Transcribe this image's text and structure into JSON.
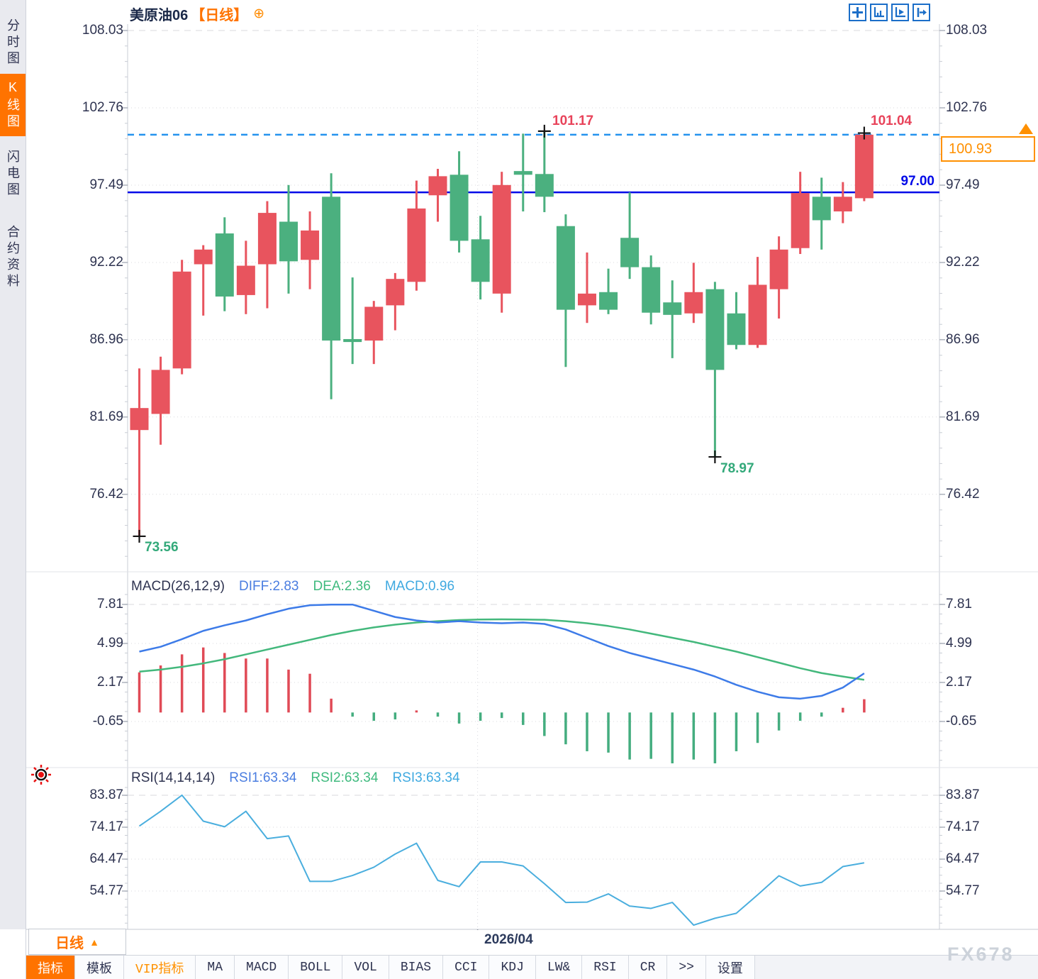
{
  "window": {
    "watermark": "FX678"
  },
  "sidebar": {
    "items": [
      {
        "label": "分时图",
        "active": false
      },
      {
        "label": "K线图",
        "active": true
      },
      {
        "label": "闪电图",
        "active": false
      },
      {
        "label": "合约资料",
        "active": false
      }
    ]
  },
  "header": {
    "title": "美原油06",
    "period_tag": "【日线】",
    "crosshair_icon": "⊕",
    "toolbar_icons": [
      "move-icon",
      "axis-zoom-icon",
      "axis-play-icon",
      "axis-shift-icon"
    ]
  },
  "price_panel": {
    "y_ticks": [
      "108.03",
      "102.76",
      "97.49",
      "92.22",
      "86.96",
      "81.69",
      "76.42"
    ],
    "annotations": {
      "high_mid": "101.17",
      "high_last": "101.04",
      "last_price": "100.93",
      "support": "97.00",
      "low_mid": "78.97",
      "low_first": "73.56"
    }
  },
  "macd_panel": {
    "label": "MACD(26,12,9)",
    "diff_label": "DIFF:2.83",
    "dea_label": "DEA:2.36",
    "macd_label": "MACD:0.96",
    "y_ticks": [
      "7.81",
      "4.99",
      "2.17",
      "-0.65"
    ]
  },
  "rsi_panel": {
    "label": "RSI(14,14,14)",
    "rsi1_label": "RSI1:63.34",
    "rsi2_label": "RSI2:63.34",
    "rsi3_label": "RSI3:63.34",
    "y_ticks": [
      "83.87",
      "74.17",
      "64.47",
      "54.77"
    ]
  },
  "xaxis": {
    "date_label": "2026/04",
    "period_button": "日线",
    "period_arrow": "▲"
  },
  "tabbar": {
    "tabs": [
      {
        "label": "指标",
        "variant": "active"
      },
      {
        "label": "模板",
        "variant": "normal"
      },
      {
        "label": "VIP指标",
        "variant": "vip"
      },
      {
        "label": "MA",
        "variant": "normal"
      },
      {
        "label": "MACD",
        "variant": "normal"
      },
      {
        "label": "BOLL",
        "variant": "normal"
      },
      {
        "label": "VOL",
        "variant": "normal"
      },
      {
        "label": "BIAS",
        "variant": "normal"
      },
      {
        "label": "CCI",
        "variant": "normal"
      },
      {
        "label": "KDJ",
        "variant": "normal"
      },
      {
        "label": "LW&",
        "variant": "normal"
      },
      {
        "label": "RSI",
        "variant": "normal"
      },
      {
        "label": "CR",
        "variant": "normal"
      },
      {
        "label": ">>",
        "variant": "normal"
      },
      {
        "label": "设置",
        "variant": "normal"
      }
    ]
  },
  "colors": {
    "up": "#e8545e",
    "down": "#4bb07f",
    "hist_up": "#e04a56",
    "hist_down": "#44ad7f",
    "accent_orange": "#ff7300",
    "blue_line": "#0009e8",
    "dashed_blue": "#2492ee",
    "diff_blue": "#3d7be8",
    "dea_green": "#43b87c",
    "rsi_line": "#4aaede",
    "annotation_red": "#e8435a",
    "annotation_green": "#33a97a",
    "last_price_orange": "#ff9000"
  },
  "chart_data": {
    "type": "candlestick",
    "instrument": "美原油06",
    "period": "日线",
    "x_axis_label": "2026/04",
    "price_ticks": [
      108.03,
      102.76,
      97.49,
      92.22,
      86.96,
      81.69,
      76.42
    ],
    "hlines": {
      "last_price_dashed": 100.93,
      "support_solid": 97.0
    },
    "annotations": [
      {
        "type": "high",
        "value": 101.17,
        "index": 19
      },
      {
        "type": "high",
        "value": 101.04,
        "index": 34
      },
      {
        "type": "low",
        "value": 78.97,
        "index": 27
      },
      {
        "type": "low",
        "value": 73.56,
        "index": 0
      }
    ],
    "x_gridline_index": 16,
    "candles": [
      [
        80.8,
        85.0,
        73.56,
        82.3
      ],
      [
        81.9,
        85.8,
        79.8,
        84.9
      ],
      [
        85.0,
        92.4,
        84.6,
        91.6
      ],
      [
        92.1,
        93.4,
        88.6,
        93.1
      ],
      [
        94.2,
        95.3,
        88.9,
        89.9
      ],
      [
        90.0,
        93.7,
        88.7,
        92.0
      ],
      [
        92.1,
        96.4,
        89.1,
        95.6
      ],
      [
        95.0,
        97.5,
        90.1,
        92.3
      ],
      [
        92.4,
        95.7,
        90.4,
        94.4
      ],
      [
        96.7,
        98.3,
        82.9,
        86.9
      ],
      [
        87.0,
        91.2,
        85.3,
        86.8
      ],
      [
        86.9,
        89.6,
        85.3,
        89.2
      ],
      [
        89.3,
        91.5,
        87.6,
        91.1
      ],
      [
        90.9,
        97.8,
        90.3,
        95.9
      ],
      [
        96.8,
        98.6,
        95.0,
        98.1
      ],
      [
        98.2,
        99.8,
        92.9,
        93.7
      ],
      [
        93.8,
        95.4,
        89.7,
        90.9
      ],
      [
        90.1,
        98.4,
        88.8,
        97.5
      ],
      [
        98.45,
        101.0,
        95.7,
        98.2
      ],
      [
        98.25,
        101.17,
        95.65,
        96.7
      ],
      [
        94.7,
        95.5,
        85.1,
        89.0
      ],
      [
        89.3,
        92.9,
        88.1,
        90.1
      ],
      [
        90.2,
        91.8,
        88.7,
        89.0
      ],
      [
        93.9,
        97.0,
        91.1,
        91.9
      ],
      [
        91.9,
        92.7,
        88.0,
        88.8
      ],
      [
        89.5,
        91.0,
        85.7,
        88.65
      ],
      [
        88.75,
        92.2,
        88.1,
        90.2
      ],
      [
        90.4,
        90.9,
        78.97,
        84.9
      ],
      [
        88.75,
        90.2,
        86.3,
        86.6
      ],
      [
        86.6,
        92.6,
        86.4,
        90.7
      ],
      [
        90.4,
        94.0,
        88.4,
        93.1
      ],
      [
        93.2,
        98.4,
        92.8,
        96.95
      ],
      [
        96.7,
        98.0,
        93.1,
        95.1
      ],
      [
        95.7,
        97.7,
        94.9,
        96.7
      ],
      [
        96.6,
        101.04,
        96.4,
        100.93
      ]
    ],
    "macd": {
      "params": [
        26,
        12,
        9
      ],
      "diff_last": 2.83,
      "dea_last": 2.36,
      "macd_last": 0.96,
      "ticks": [
        7.81,
        4.99,
        2.17,
        -0.65
      ],
      "diff": [
        4.4,
        4.75,
        5.3,
        5.9,
        6.3,
        6.65,
        7.1,
        7.5,
        7.75,
        7.8,
        7.8,
        7.35,
        6.9,
        6.65,
        6.5,
        6.6,
        6.5,
        6.45,
        6.5,
        6.4,
        6.0,
        5.4,
        4.8,
        4.3,
        3.9,
        3.5,
        3.1,
        2.6,
        2.0,
        1.5,
        1.1,
        1.0,
        1.2,
        1.8,
        2.83
      ],
      "dea": [
        2.95,
        3.1,
        3.3,
        3.55,
        3.85,
        4.2,
        4.55,
        4.9,
        5.25,
        5.6,
        5.9,
        6.15,
        6.35,
        6.5,
        6.6,
        6.68,
        6.72,
        6.73,
        6.72,
        6.7,
        6.6,
        6.45,
        6.25,
        6.0,
        5.7,
        5.4,
        5.1,
        4.75,
        4.4,
        4.0,
        3.6,
        3.2,
        2.85,
        2.6,
        2.36
      ],
      "hist": [
        2.9,
        3.4,
        4.2,
        4.7,
        4.3,
        3.9,
        3.9,
        3.1,
        2.8,
        1.0,
        -0.3,
        -0.6,
        -0.5,
        0.15,
        -0.3,
        -0.8,
        -0.6,
        -0.4,
        -0.9,
        -1.7,
        -2.3,
        -2.8,
        -2.9,
        -3.4,
        -3.35,
        -3.8,
        -3.4,
        -3.85,
        -2.8,
        -2.2,
        -1.3,
        -0.6,
        -0.3,
        0.34,
        0.96
      ]
    },
    "rsi": {
      "params": [
        14,
        14,
        14
      ],
      "rsi1_last": 63.34,
      "rsi2_last": 63.34,
      "rsi3_last": 63.34,
      "ticks": [
        83.87,
        74.17,
        64.47,
        54.77
      ],
      "values": [
        74.5,
        79.0,
        83.9,
        76.0,
        74.3,
        79.0,
        70.7,
        71.5,
        57.7,
        57.7,
        59.5,
        62.0,
        66.0,
        69.3,
        58.0,
        56.1,
        63.6,
        63.6,
        62.4,
        57.0,
        51.3,
        51.4,
        53.9,
        50.2,
        49.5,
        51.3,
        44.4,
        46.5,
        48.0,
        53.6,
        59.4,
        56.3,
        57.4,
        62.2,
        63.34
      ]
    }
  }
}
